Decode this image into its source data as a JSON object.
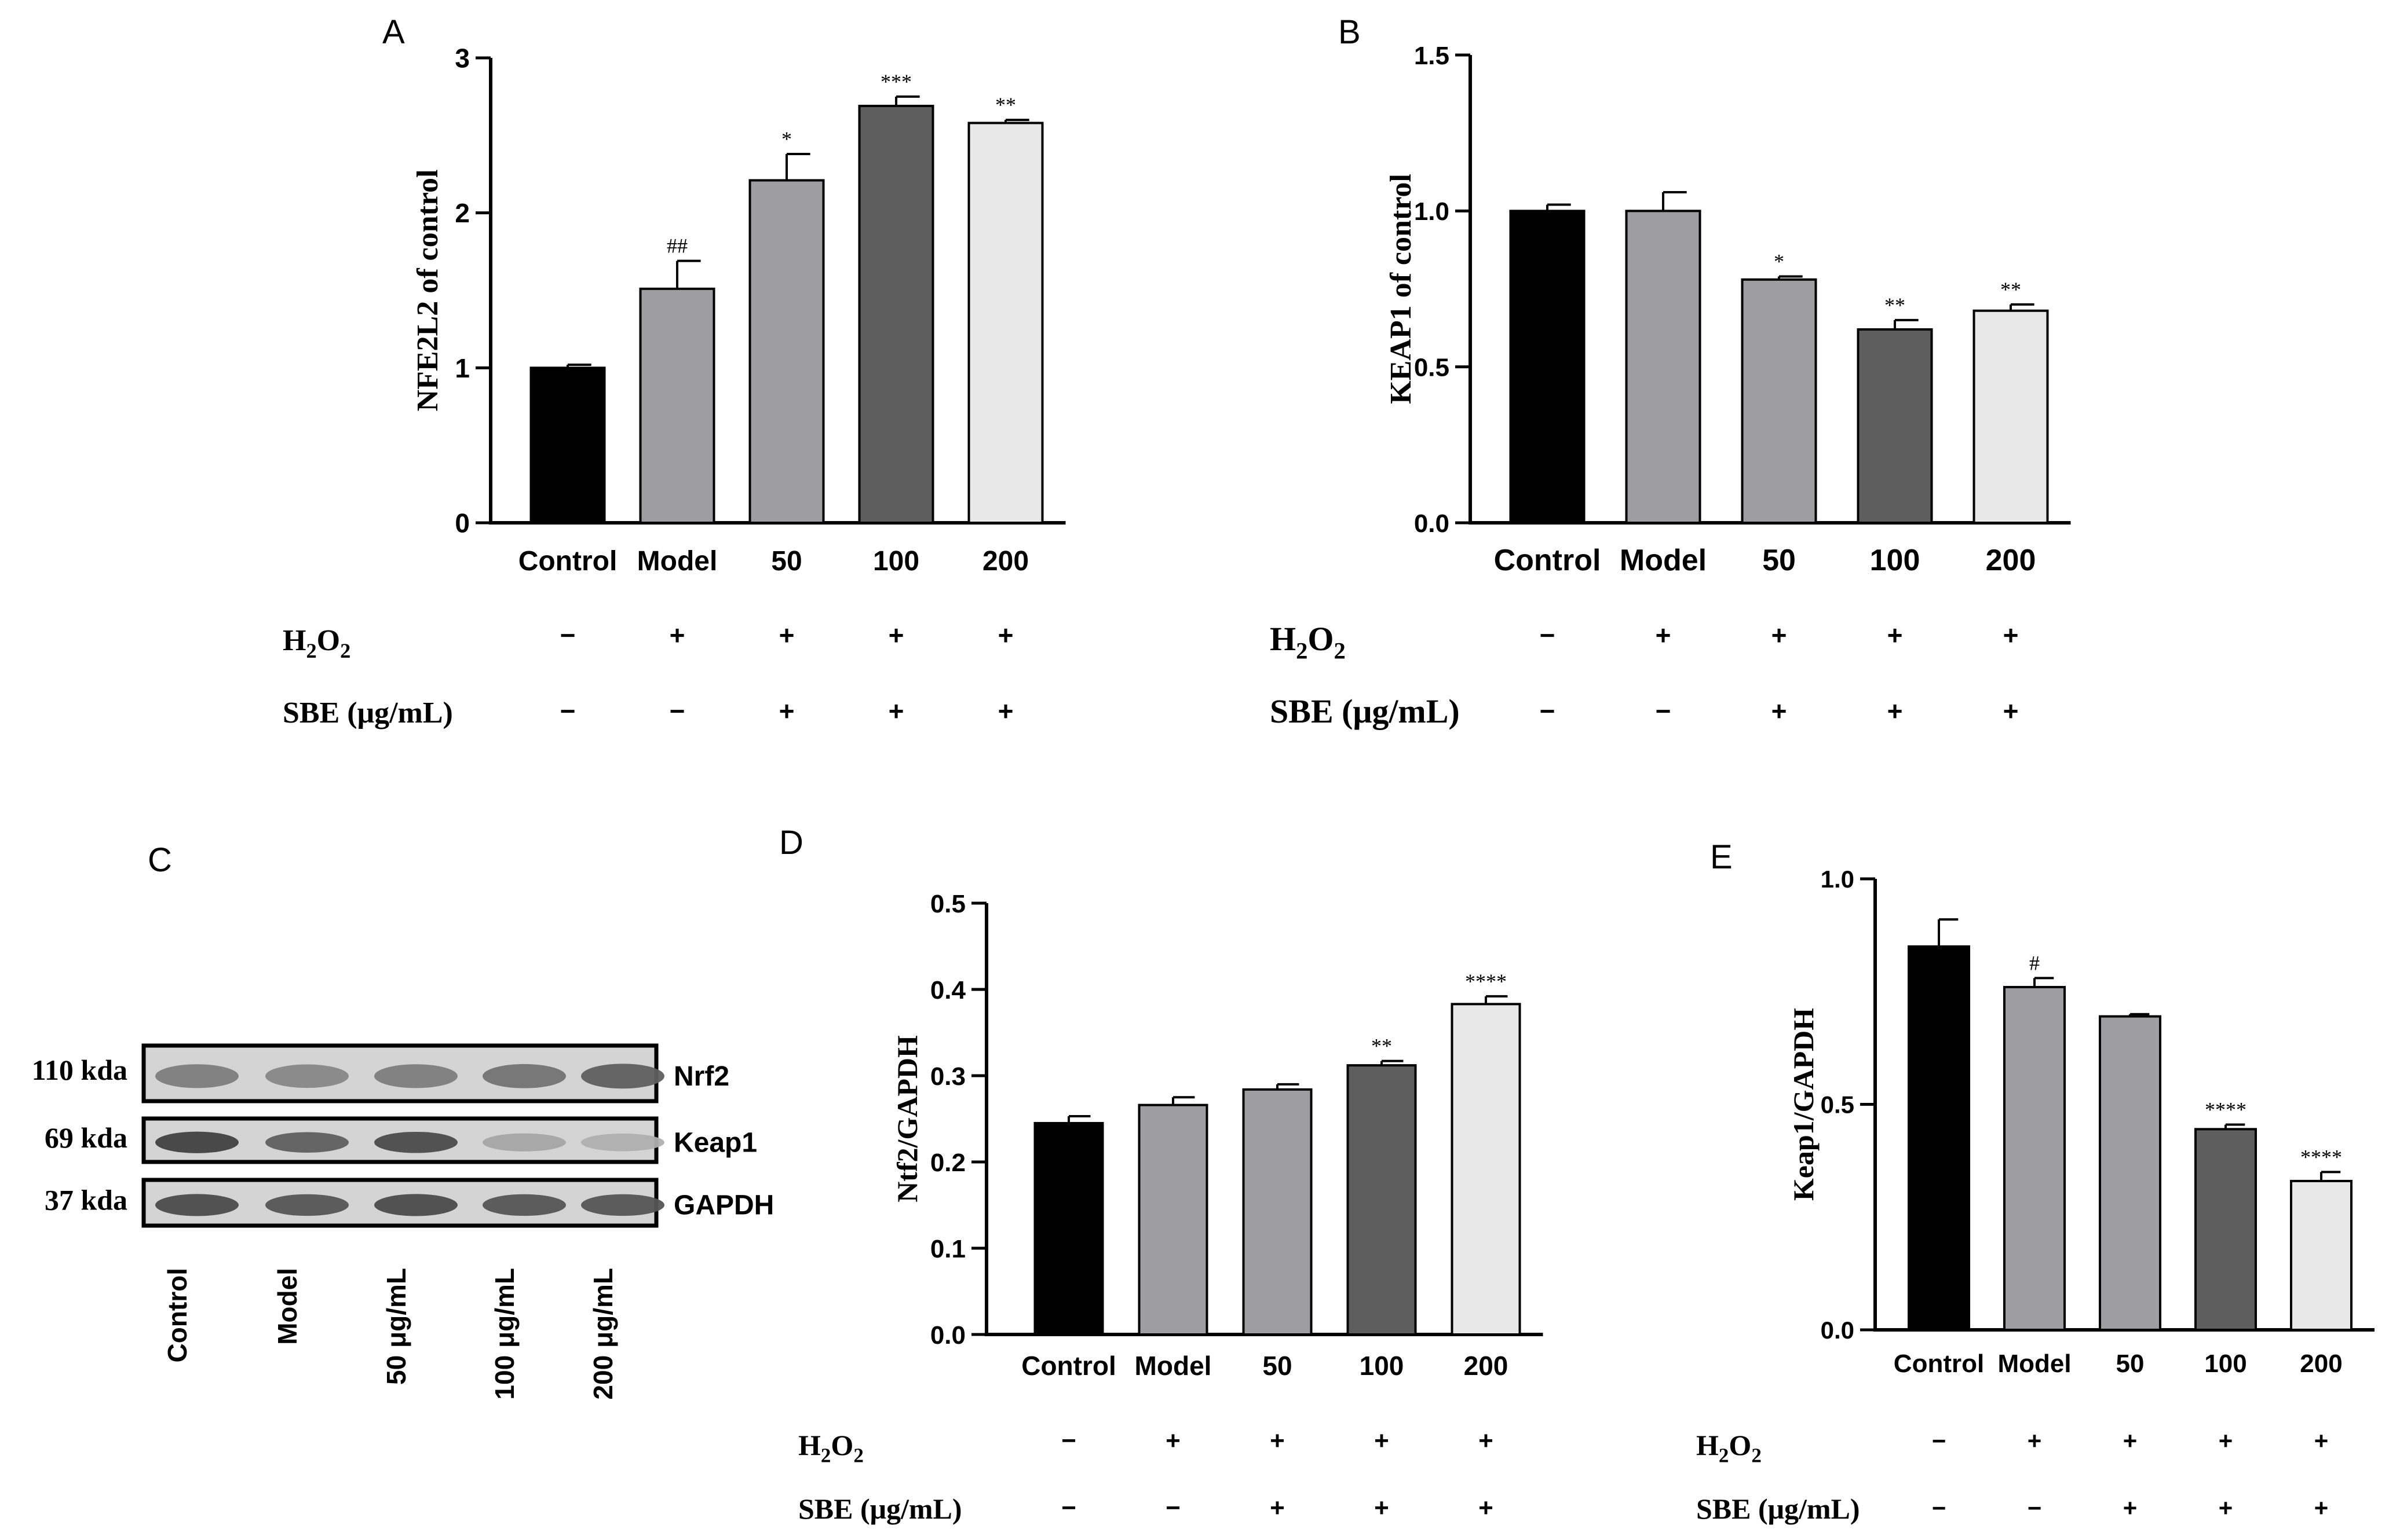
{
  "categories": [
    "Control",
    "Model",
    "50",
    "100",
    "200"
  ],
  "bar_colors": [
    "#000000",
    "#9d9da2",
    "#9d9da2",
    "#5e5e5e",
    "#e8e8e8"
  ],
  "treatment": {
    "h2o2_label": "H₂O₂",
    "sbe_label": "SBE (μg/mL)",
    "h2o2": [
      "−",
      "+",
      "+",
      "+",
      "+"
    ],
    "sbe": [
      "−",
      "−",
      "+",
      "+",
      "+"
    ]
  },
  "chart_data": [
    {
      "panel": "A",
      "type": "bar",
      "ylabel": "NFE2L2 of control",
      "ylim": [
        0,
        3
      ],
      "yticks": [
        "0",
        "1",
        "2",
        "3"
      ],
      "values": [
        1.0,
        1.51,
        2.21,
        2.69,
        2.58
      ],
      "errors": [
        0.02,
        0.18,
        0.17,
        0.06,
        0.02
      ],
      "annotations": [
        "",
        "##",
        "*",
        "***",
        "**"
      ]
    },
    {
      "panel": "B",
      "type": "bar",
      "ylabel": "KEAP1 of control",
      "ylim": [
        0,
        1.5
      ],
      "yticks": [
        "0.0",
        "0.5",
        "1.0",
        "1.5"
      ],
      "values": [
        1.0,
        1.0,
        0.78,
        0.62,
        0.68
      ],
      "errors": [
        0.02,
        0.06,
        0.01,
        0.03,
        0.02
      ],
      "annotations": [
        "",
        "",
        "*",
        "**",
        "**"
      ]
    },
    {
      "panel": "D",
      "type": "bar",
      "ylabel": "Ntf2/GAPDH",
      "ylim": [
        0,
        0.5
      ],
      "yticks": [
        "0.0",
        "0.1",
        "0.2",
        "0.3",
        "0.4",
        "0.5"
      ],
      "values": [
        0.245,
        0.266,
        0.284,
        0.312,
        0.383
      ],
      "errors": [
        0.008,
        0.009,
        0.006,
        0.005,
        0.009
      ],
      "annotations": [
        "",
        "",
        "",
        "**",
        "****"
      ]
    },
    {
      "panel": "E",
      "type": "bar",
      "ylabel": "Keap1/GAPDH",
      "ylim": [
        0,
        1.0
      ],
      "yticks": [
        "0.0",
        "0.5",
        "1.0"
      ],
      "values": [
        0.85,
        0.76,
        0.695,
        0.445,
        0.33
      ],
      "errors": [
        0.06,
        0.02,
        0.005,
        0.01,
        0.02
      ],
      "annotations": [
        "",
        "#",
        "",
        "****",
        "****"
      ]
    }
  ],
  "western_blot": {
    "panel": "C",
    "bands": [
      {
        "weight": "110 kda",
        "protein": "Nrf2",
        "intensity": [
          0.55,
          0.5,
          0.55,
          0.6,
          0.7
        ]
      },
      {
        "weight": "69 kda",
        "protein": "Keap1",
        "intensity": [
          0.85,
          0.7,
          0.8,
          0.35,
          0.3
        ]
      },
      {
        "weight": "37 kda",
        "protein": "GAPDH",
        "intensity": [
          0.8,
          0.75,
          0.8,
          0.75,
          0.75
        ]
      }
    ],
    "lanes": [
      "Control",
      "Model",
      "50 μg/mL",
      "100 μg/mL",
      "200 μg/mL"
    ]
  }
}
